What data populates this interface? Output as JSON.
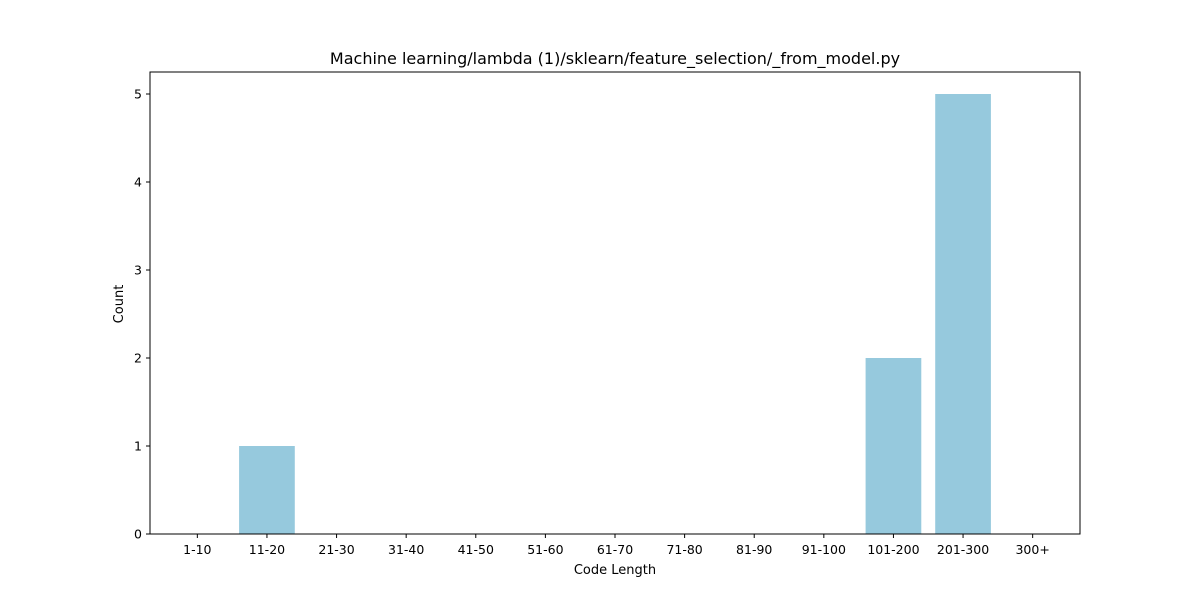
{
  "chart_data": {
    "type": "bar",
    "title": "Machine learning/lambda (1)/sklearn/feature_selection/_from_model.py",
    "xlabel": "Code Length",
    "ylabel": "Count",
    "categories": [
      "1-10",
      "11-20",
      "21-30",
      "31-40",
      "41-50",
      "51-60",
      "61-70",
      "71-80",
      "81-90",
      "91-100",
      "101-200",
      "201-300",
      "300+"
    ],
    "values": [
      0,
      1,
      0,
      0,
      0,
      0,
      0,
      0,
      0,
      0,
      2,
      5,
      0
    ],
    "ylim": [
      0,
      5.25
    ],
    "yticks": [
      0,
      1,
      2,
      3,
      4,
      5
    ],
    "grid": false,
    "colors": {
      "bar": "#96c9dd",
      "axes": "#000000",
      "background": "#ffffff"
    }
  }
}
